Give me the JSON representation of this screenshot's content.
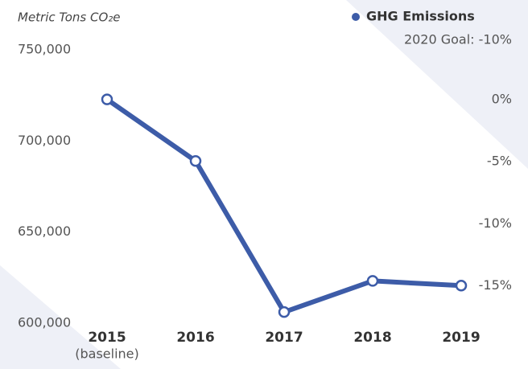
{
  "chart_data": {
    "type": "line",
    "y_label": "Metric Tons CO₂e",
    "categories": [
      "2015",
      "2016",
      "2017",
      "2018",
      "2019"
    ],
    "category_note": "(baseline)",
    "series": [
      {
        "name": "GHG Emissions",
        "color": "#3d5ca8",
        "values": [
          722800,
          689000,
          606100,
          623200,
          620600
        ]
      }
    ],
    "annotation": "2020 Goal: -10%",
    "ylim": [
      600000,
      750000
    ],
    "yticks": [
      {
        "value": 600000,
        "label": "600,000"
      },
      {
        "value": 650000,
        "label": "650,000"
      },
      {
        "value": 700000,
        "label": "700,000"
      },
      {
        "value": 750000,
        "label": "750,000"
      }
    ],
    "y2lim": [
      -18,
      4
    ],
    "y2ticks": [
      {
        "value": -15,
        "label": "-15%"
      },
      {
        "value": -10,
        "label": "-10%"
      },
      {
        "value": -5,
        "label": "-5%"
      },
      {
        "value": 0,
        "label": "0%"
      }
    ],
    "grid": false
  }
}
